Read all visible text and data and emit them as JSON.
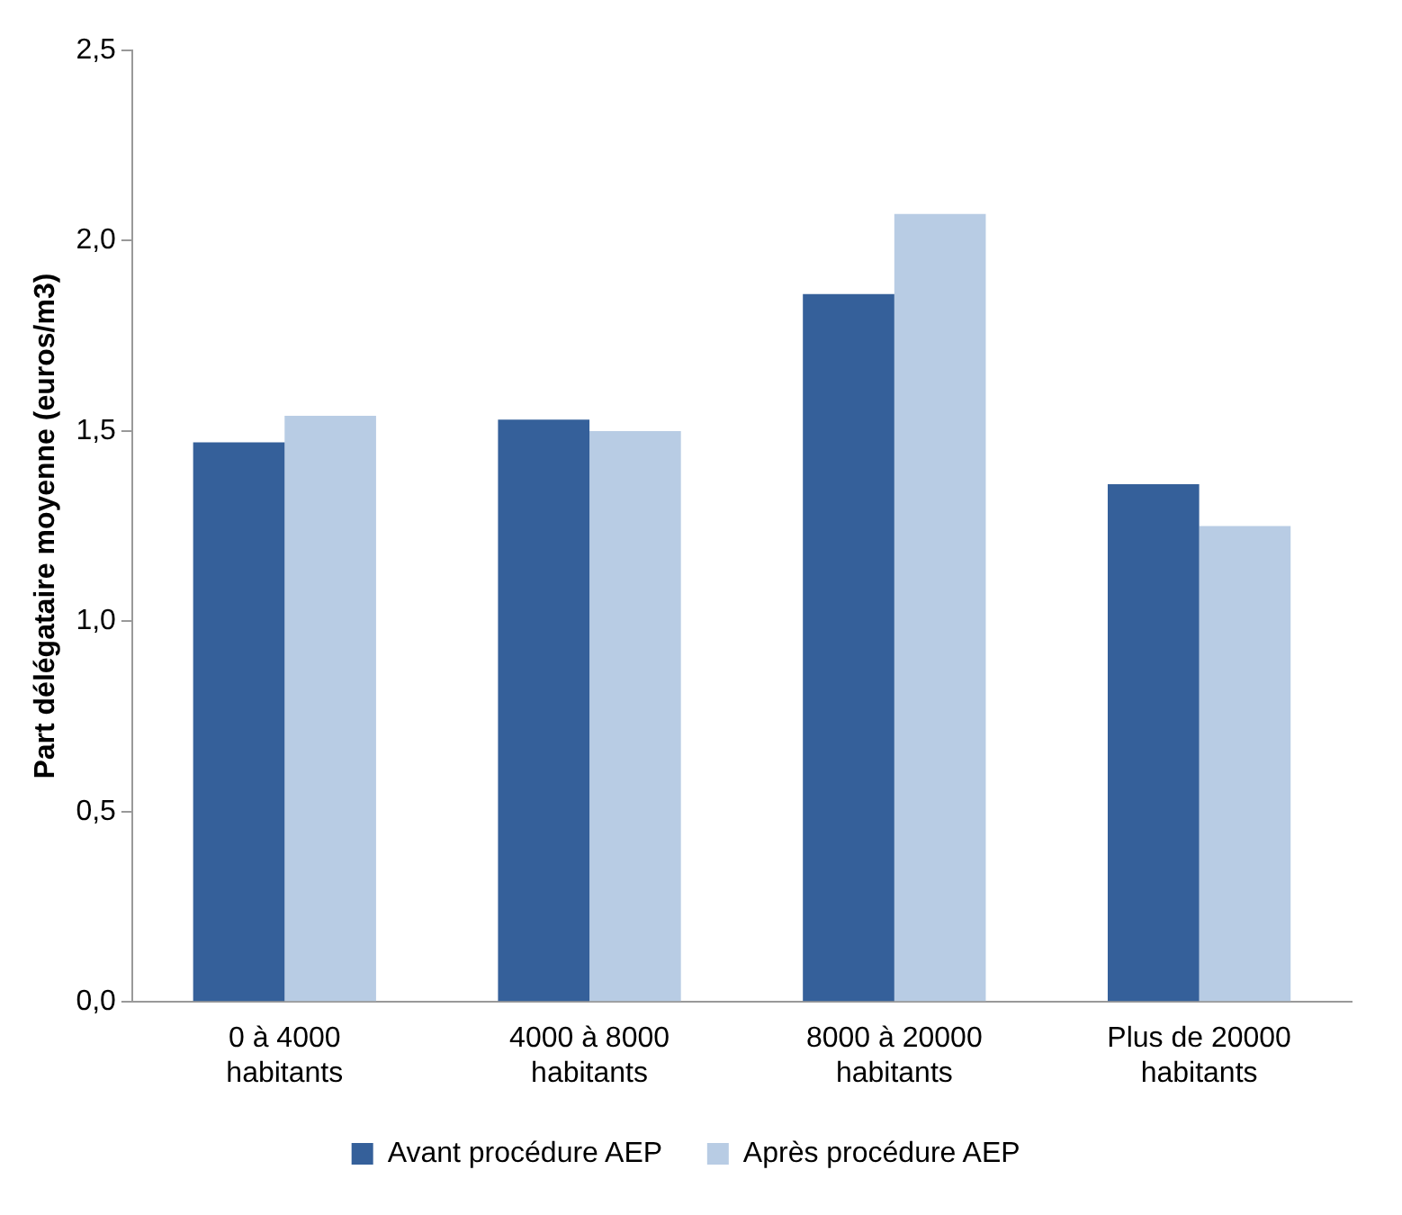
{
  "chart_data": {
    "type": "bar",
    "ylabel": "Part délégataire moyenne (euros/m3)",
    "categories": [
      "0 à 4000 habitants",
      "4000 à 8000 habitants",
      "8000 à 20000 habitants",
      "Plus de 20000 habitants"
    ],
    "series": [
      {
        "name": "Avant procédure AEP",
        "color": "#35609a",
        "values": [
          1.47,
          1.53,
          1.86,
          1.36
        ]
      },
      {
        "name": "Après procédure AEP",
        "color": "#b8cce4",
        "values": [
          1.54,
          1.5,
          2.07,
          1.25
        ]
      }
    ],
    "ylim": [
      0,
      2.5
    ],
    "yticks": [
      {
        "value": 0,
        "label": "0,0"
      },
      {
        "value": 0.5,
        "label": "0,5"
      },
      {
        "value": 1,
        "label": "1,0"
      },
      {
        "value": 1.5,
        "label": "1,5"
      },
      {
        "value": 2,
        "label": "2,0"
      },
      {
        "value": 2.5,
        "label": "2,5"
      }
    ],
    "grid": false,
    "legend": "bottom"
  }
}
